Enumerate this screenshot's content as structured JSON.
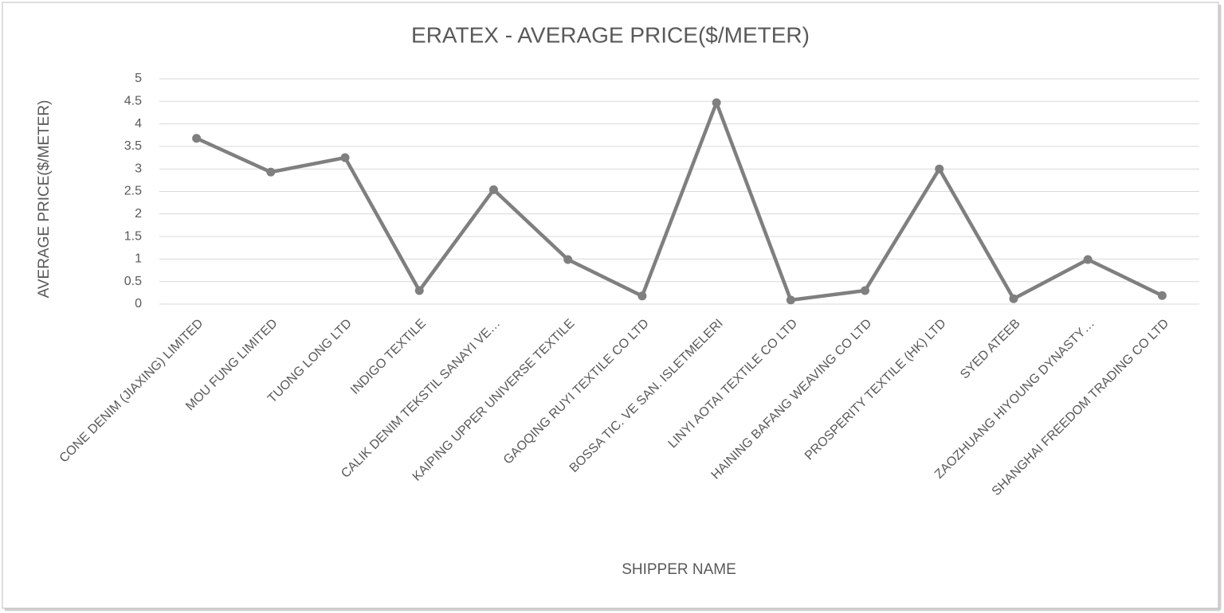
{
  "chart_data": {
    "type": "line",
    "title": "ERATEX - AVERAGE PRICE($/METER)",
    "x_label": "SHIPPER NAME",
    "y_label": "AVERAGE   PRICE($/METER)",
    "categories": [
      "CONE DENIM (JIAXING) LIMITED",
      "MOU FUNG LIMITED",
      "TUONG LONG LTD",
      "INDIGO TEXTILE",
      "CALIK DENIM TEKSTIL SANAYI VE…",
      "KAIPING UPPER UNIVERSE TEXTILE",
      "GAOQING RUYI TEXTILE CO LTD",
      "BOSSA TIC. VE SAN. ISLETMELERI",
      "LINYI AOTAI TEXTILE CO LTD",
      "HAINING BAFANG WEAVING CO LTD",
      "PROSPERITY TEXTILE (HK) LTD",
      "SYED ATEEB",
      "ZAOZHUANG HIYOUNG DYNASTY…",
      "SHANGHAI FREEDOM TRADING CO LTD"
    ],
    "values": [
      3.68,
      2.93,
      3.25,
      0.3,
      2.54,
      0.99,
      0.18,
      4.47,
      0.09,
      0.3,
      3.0,
      0.12,
      0.99,
      0.19
    ],
    "color": "#7f7f7f",
    "ylim": [
      0,
      5
    ],
    "yticks": [
      0,
      0.5,
      1,
      1.5,
      2,
      2.5,
      3,
      3.5,
      4,
      4.5,
      5
    ],
    "grid": true
  }
}
